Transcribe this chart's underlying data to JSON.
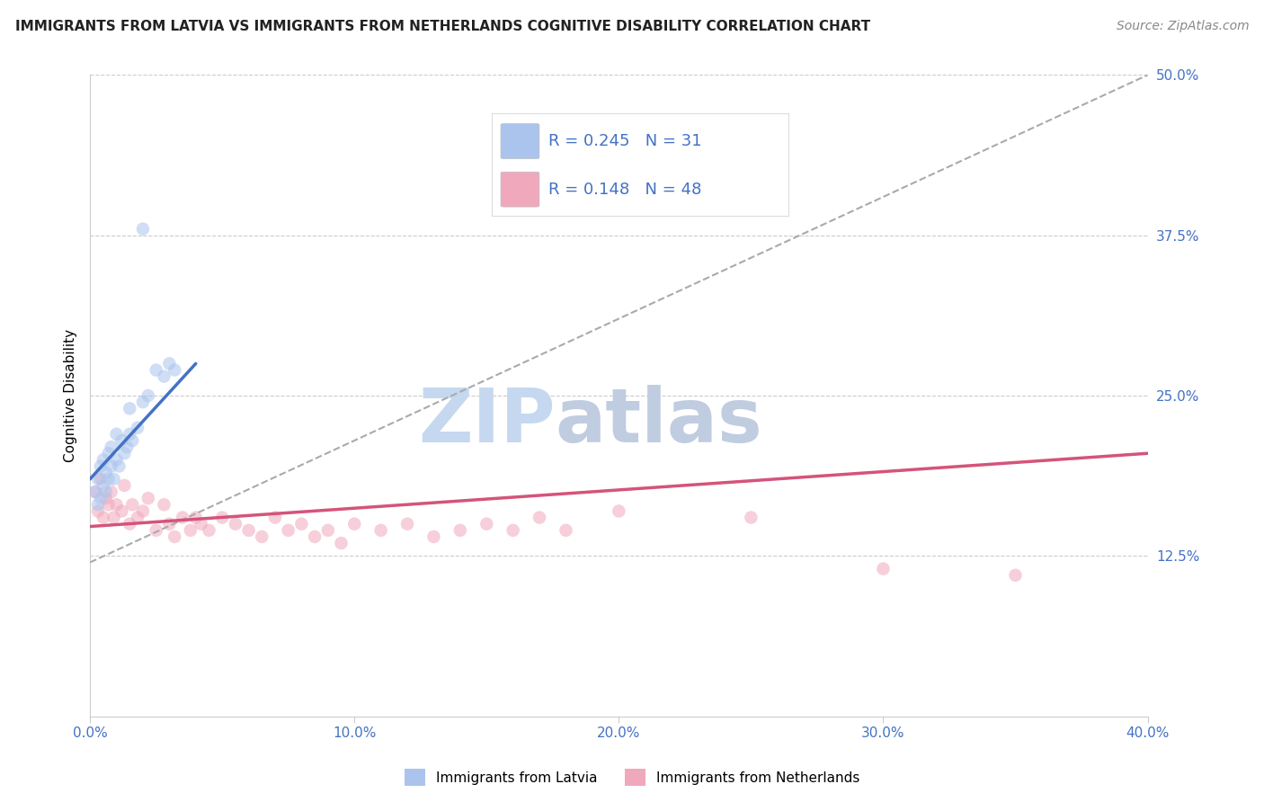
{
  "title": "IMMIGRANTS FROM LATVIA VS IMMIGRANTS FROM NETHERLANDS COGNITIVE DISABILITY CORRELATION CHART",
  "source": "Source: ZipAtlas.com",
  "ylabel": "Cognitive Disability",
  "xlim": [
    0.0,
    0.4
  ],
  "ylim": [
    0.0,
    0.5
  ],
  "xticks": [
    0.0,
    0.1,
    0.2,
    0.3,
    0.4
  ],
  "xtick_labels": [
    "0.0%",
    "10.0%",
    "20.0%",
    "30.0%",
    "40.0%"
  ],
  "ytick_labels_right": [
    "12.5%",
    "25.0%",
    "37.5%",
    "50.0%"
  ],
  "yticks_right": [
    0.125,
    0.25,
    0.375,
    0.5
  ],
  "grid_color": "#cccccc",
  "background_color": "#ffffff",
  "latvia_color": "#aac4ed",
  "netherlands_color": "#f0a8bc",
  "latvia_line_color": "#4472c4",
  "netherlands_line_color": "#d4547a",
  "dashed_line_color": "#aaaaaa",
  "R_latvia": 0.245,
  "N_latvia": 31,
  "R_netherlands": 0.148,
  "N_netherlands": 48,
  "latvia_scatter_x": [
    0.002,
    0.003,
    0.003,
    0.004,
    0.004,
    0.005,
    0.005,
    0.006,
    0.006,
    0.007,
    0.007,
    0.008,
    0.008,
    0.009,
    0.01,
    0.01,
    0.011,
    0.012,
    0.013,
    0.014,
    0.015,
    0.016,
    0.018,
    0.02,
    0.022,
    0.025,
    0.028,
    0.03,
    0.032,
    0.02,
    0.015
  ],
  "latvia_scatter_y": [
    0.175,
    0.165,
    0.185,
    0.17,
    0.195,
    0.18,
    0.2,
    0.175,
    0.19,
    0.185,
    0.205,
    0.195,
    0.21,
    0.185,
    0.2,
    0.22,
    0.195,
    0.215,
    0.205,
    0.21,
    0.22,
    0.215,
    0.225,
    0.245,
    0.25,
    0.27,
    0.265,
    0.275,
    0.27,
    0.38,
    0.24
  ],
  "netherlands_scatter_x": [
    0.002,
    0.003,
    0.004,
    0.005,
    0.006,
    0.007,
    0.008,
    0.009,
    0.01,
    0.012,
    0.013,
    0.015,
    0.016,
    0.018,
    0.02,
    0.022,
    0.025,
    0.028,
    0.03,
    0.032,
    0.035,
    0.038,
    0.04,
    0.042,
    0.045,
    0.05,
    0.055,
    0.06,
    0.065,
    0.07,
    0.075,
    0.08,
    0.085,
    0.09,
    0.095,
    0.1,
    0.11,
    0.12,
    0.13,
    0.14,
    0.15,
    0.16,
    0.17,
    0.18,
    0.2,
    0.25,
    0.3,
    0.35
  ],
  "netherlands_scatter_y": [
    0.175,
    0.16,
    0.185,
    0.155,
    0.17,
    0.165,
    0.175,
    0.155,
    0.165,
    0.16,
    0.18,
    0.15,
    0.165,
    0.155,
    0.16,
    0.17,
    0.145,
    0.165,
    0.15,
    0.14,
    0.155,
    0.145,
    0.155,
    0.15,
    0.145,
    0.155,
    0.15,
    0.145,
    0.14,
    0.155,
    0.145,
    0.15,
    0.14,
    0.145,
    0.135,
    0.15,
    0.145,
    0.15,
    0.14,
    0.145,
    0.15,
    0.145,
    0.155,
    0.145,
    0.16,
    0.155,
    0.115,
    0.11
  ],
  "title_fontsize": 11,
  "axis_label_fontsize": 11,
  "tick_fontsize": 11,
  "legend_fontsize": 13,
  "source_fontsize": 10,
  "marker_size": 110,
  "marker_alpha": 0.55,
  "watermark_text_1": "ZIP",
  "watermark_text_2": "atlas",
  "watermark_color_1": "#c5d8f0",
  "watermark_color_2": "#c0cce0",
  "watermark_fontsize": 60,
  "legend_label_latvia": "Immigrants from Latvia",
  "legend_label_netherlands": "Immigrants from Netherlands",
  "latvia_line_x": [
    0.0,
    0.04
  ],
  "latvia_line_y": [
    0.185,
    0.275
  ],
  "netherlands_line_x": [
    0.0,
    0.4
  ],
  "netherlands_line_y": [
    0.148,
    0.205
  ],
  "dashed_line_x": [
    0.0,
    0.4
  ],
  "dashed_line_y": [
    0.12,
    0.5
  ]
}
